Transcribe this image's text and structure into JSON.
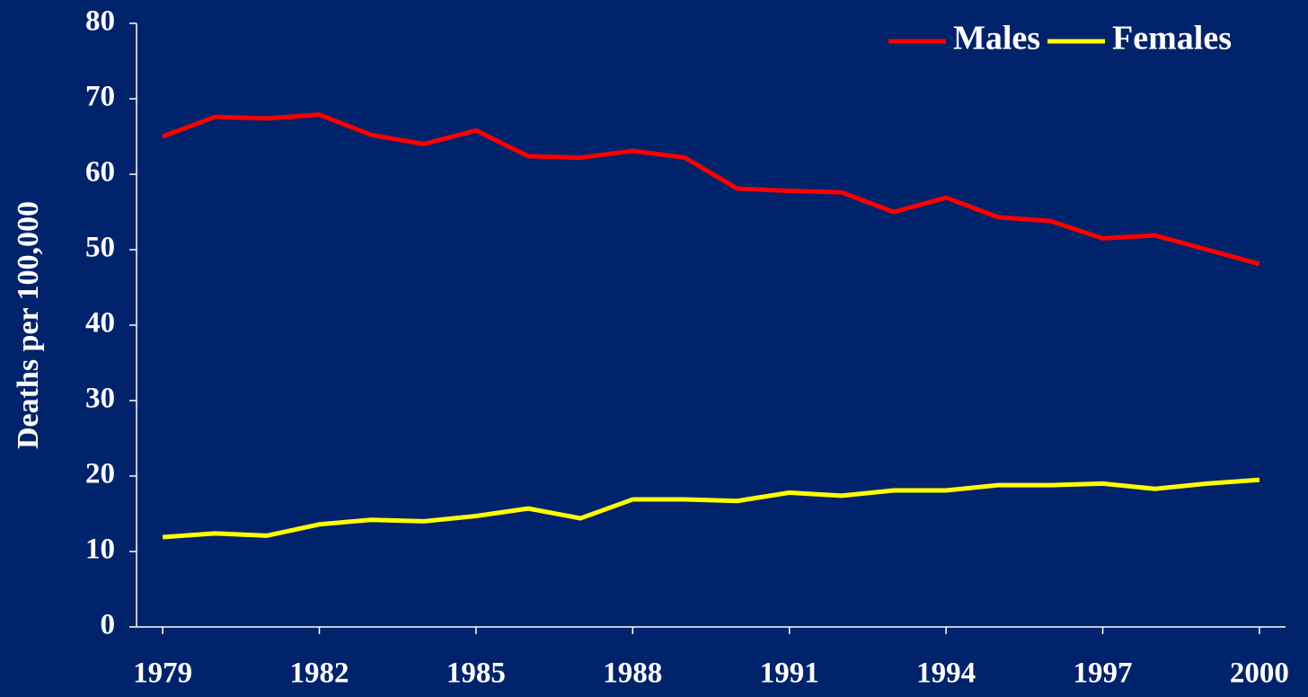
{
  "chart_data": {
    "type": "line",
    "y_label": "Deaths per 100,000",
    "x": [
      1979,
      1980,
      1981,
      1982,
      1983,
      1984,
      1985,
      1986,
      1987,
      1988,
      1989,
      1990,
      1991,
      1992,
      1993,
      1994,
      1995,
      1996,
      1997,
      1998,
      1999,
      2000
    ],
    "series": [
      {
        "name": "Males",
        "color": "#ff0000",
        "values": [
          65,
          67.6,
          67.4,
          67.9,
          65.2,
          64,
          65.8,
          62.4,
          62.2,
          63.1,
          62.2,
          58.1,
          57.8,
          57.6,
          55,
          56.9,
          54.3,
          53.8,
          51.5,
          51.9,
          50,
          48.1
        ]
      },
      {
        "name": "Females",
        "color": "#ffff00",
        "values": [
          11.9,
          12.4,
          12.1,
          13.6,
          14.2,
          14,
          14.7,
          15.7,
          14.4,
          16.9,
          16.9,
          16.7,
          17.8,
          17.4,
          18.1,
          18.1,
          18.8,
          18.8,
          19,
          18.3,
          19,
          19.5
        ]
      }
    ],
    "xlim": [
      1978.5,
      2000.5
    ],
    "xticks": [
      1979,
      1982,
      1985,
      1988,
      1991,
      1994,
      1997,
      2000
    ],
    "ylim": [
      0,
      80
    ],
    "yticks": [
      0,
      10,
      20,
      30,
      40,
      50,
      60,
      70,
      80
    ],
    "legend": "upper right"
  }
}
